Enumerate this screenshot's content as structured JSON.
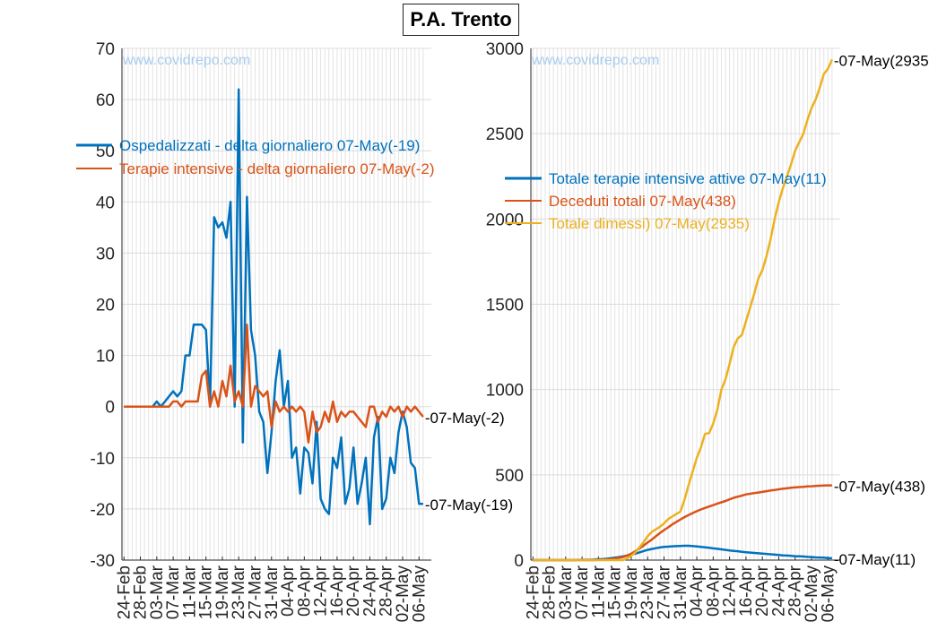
{
  "title": "P.A. Trento",
  "watermark": "www.covidrepo.com",
  "dates": [
    "24-Feb",
    "25-Feb",
    "26-Feb",
    "27-Feb",
    "28-Feb",
    "29-Feb",
    "01-Mar",
    "02-Mar",
    "03-Mar",
    "04-Mar",
    "05-Mar",
    "06-Mar",
    "07-Mar",
    "08-Mar",
    "09-Mar",
    "10-Mar",
    "11-Mar",
    "12-Mar",
    "13-Mar",
    "14-Mar",
    "15-Mar",
    "16-Mar",
    "17-Mar",
    "18-Mar",
    "19-Mar",
    "20-Mar",
    "21-Mar",
    "22-Mar",
    "23-Mar",
    "24-Mar",
    "25-Mar",
    "26-Mar",
    "27-Mar",
    "28-Mar",
    "29-Mar",
    "30-Mar",
    "31-Mar",
    "01-Apr",
    "02-Apr",
    "03-Apr",
    "04-Apr",
    "05-Apr",
    "06-Apr",
    "07-Apr",
    "08-Apr",
    "09-Apr",
    "10-Apr",
    "11-Apr",
    "12-Apr",
    "13-Apr",
    "14-Apr",
    "15-Apr",
    "16-Apr",
    "17-Apr",
    "18-Apr",
    "19-Apr",
    "20-Apr",
    "21-Apr",
    "22-Apr",
    "23-Apr",
    "24-Apr",
    "25-Apr",
    "26-Apr",
    "27-Apr",
    "28-Apr",
    "29-Apr",
    "30-Apr",
    "01-May",
    "02-May",
    "03-May",
    "04-May",
    "05-May",
    "06-May",
    "07-May"
  ],
  "colors": {
    "blue": "#0072BD",
    "orange": "#D95319",
    "yellow": "#EDB120"
  },
  "chart_data": [
    {
      "type": "line",
      "xtick_labels": [
        "24-Feb",
        "28-Feb",
        "03-Mar",
        "07-Mar",
        "11-Mar",
        "15-Mar",
        "19-Mar",
        "23-Mar",
        "27-Mar",
        "31-Mar",
        "04-Apr",
        "08-Apr",
        "12-Apr",
        "16-Apr",
        "20-Apr",
        "24-Apr",
        "28-Apr",
        "02-May",
        "06-May"
      ],
      "ylim": [
        -30,
        70
      ],
      "yticks": [
        -30,
        -20,
        -10,
        0,
        10,
        20,
        30,
        40,
        50,
        60,
        70
      ],
      "grid": true,
      "legend_position": "upper-left",
      "series": [
        {
          "name": "Ospedalizzati - delta giornaliero 07-May(-19)",
          "end_label": "-07-May(-19)",
          "color": "#0072BD",
          "values": [
            0,
            0,
            0,
            0,
            0,
            0,
            0,
            0,
            1,
            0,
            1,
            2,
            3,
            2,
            3,
            10,
            10,
            16,
            16,
            16,
            15,
            0,
            37,
            35,
            36,
            33,
            40,
            0,
            62,
            -7,
            41,
            15,
            10,
            -1,
            -3,
            -13,
            -5,
            5,
            11,
            0,
            5,
            -10,
            -8,
            -17,
            -8,
            -9,
            -15,
            -3,
            -18,
            -20,
            -21,
            -10,
            -12,
            -6,
            -19,
            -16,
            -8,
            -19,
            -15,
            -10,
            -23,
            -6,
            -2,
            -20,
            -18,
            -10,
            -13,
            -5,
            -1,
            -4,
            -11,
            -12,
            -19,
            -19
          ]
        },
        {
          "name": "Terapie intensive - delta giornaliero 07-May(-2)",
          "end_label": "-07-May(-2)",
          "color": "#D95319",
          "values": [
            0,
            0,
            0,
            0,
            0,
            0,
            0,
            0,
            0,
            0,
            0,
            0,
            1,
            1,
            0,
            1,
            1,
            1,
            1,
            6,
            7,
            0,
            3,
            0,
            5,
            2,
            8,
            1,
            3,
            0,
            16,
            0,
            4,
            3,
            2,
            3,
            -4,
            1,
            -1,
            0,
            -1,
            0,
            -1,
            0,
            -1,
            -7,
            -1,
            -5,
            -4,
            -1,
            -3,
            1,
            -3,
            -1,
            -2,
            -1,
            -1,
            -2,
            -3,
            -4,
            0,
            0,
            -3,
            -1,
            -2,
            0,
            -1,
            0,
            -2,
            0,
            -1,
            0,
            -1,
            -2
          ]
        }
      ]
    },
    {
      "type": "line",
      "xtick_labels": [
        "24-Feb",
        "28-Feb",
        "03-Mar",
        "07-Mar",
        "11-Mar",
        "15-Mar",
        "19-Mar",
        "23-Mar",
        "27-Mar",
        "31-Mar",
        "04-Apr",
        "08-Apr",
        "12-Apr",
        "16-Apr",
        "20-Apr",
        "24-Apr",
        "28-Apr",
        "02-May",
        "06-May"
      ],
      "ylim": [
        0,
        3000
      ],
      "yticks": [
        0,
        500,
        1000,
        1500,
        2000,
        2500,
        3000
      ],
      "grid": true,
      "legend_position": "upper-left",
      "series": [
        {
          "name": "Totale terapie intensive attive 07-May(11)",
          "end_label": "-07-May(11)",
          "color": "#0072BD",
          "values": [
            0,
            0,
            0,
            0,
            0,
            0,
            0,
            0,
            0,
            0,
            0,
            1,
            1,
            2,
            2,
            3,
            5,
            6,
            8,
            11,
            14,
            18,
            22,
            27,
            33,
            38,
            45,
            53,
            60,
            65,
            70,
            74,
            77,
            79,
            81,
            82,
            83,
            84,
            84,
            82,
            80,
            78,
            75,
            72,
            69,
            66,
            63,
            60,
            57,
            54,
            52,
            49,
            46,
            44,
            42,
            40,
            38,
            36,
            34,
            32,
            30,
            28,
            27,
            25,
            23,
            22,
            21,
            19,
            18,
            16,
            15,
            14,
            12,
            11
          ]
        },
        {
          "name": "Deceduti totali 07-May(438)",
          "end_label": "-07-May(438)",
          "color": "#D95319",
          "values": [
            0,
            0,
            0,
            0,
            0,
            0,
            0,
            0,
            0,
            0,
            0,
            0,
            0,
            0,
            0,
            0,
            1,
            2,
            3,
            6,
            9,
            13,
            18,
            27,
            38,
            52,
            68,
            85,
            103,
            120,
            140,
            158,
            176,
            192,
            209,
            224,
            238,
            252,
            264,
            276,
            287,
            297,
            306,
            314,
            322,
            331,
            339,
            347,
            356,
            365,
            372,
            378,
            385,
            389,
            393,
            396,
            400,
            404,
            408,
            411,
            415,
            418,
            421,
            424,
            426,
            428,
            430,
            432,
            433,
            435,
            436,
            437,
            438,
            438
          ]
        },
        {
          "name": "Totale dimessi) 07-May(2935)",
          "end_label": "-07-May(2935)",
          "color": "#EDB120",
          "values": [
            0,
            0,
            0,
            0,
            0,
            0,
            0,
            0,
            0,
            0,
            0,
            0,
            0,
            0,
            0,
            0,
            0,
            0,
            0,
            0,
            0,
            0,
            0,
            10,
            25,
            45,
            75,
            105,
            140,
            165,
            180,
            195,
            215,
            240,
            255,
            270,
            285,
            355,
            440,
            520,
            600,
            660,
            740,
            745,
            800,
            880,
            1000,
            1060,
            1150,
            1250,
            1300,
            1320,
            1400,
            1480,
            1560,
            1650,
            1700,
            1780,
            1880,
            2000,
            2100,
            2180,
            2250,
            2320,
            2400,
            2450,
            2500,
            2580,
            2650,
            2700,
            2770,
            2850,
            2880,
            2935
          ]
        }
      ]
    }
  ]
}
